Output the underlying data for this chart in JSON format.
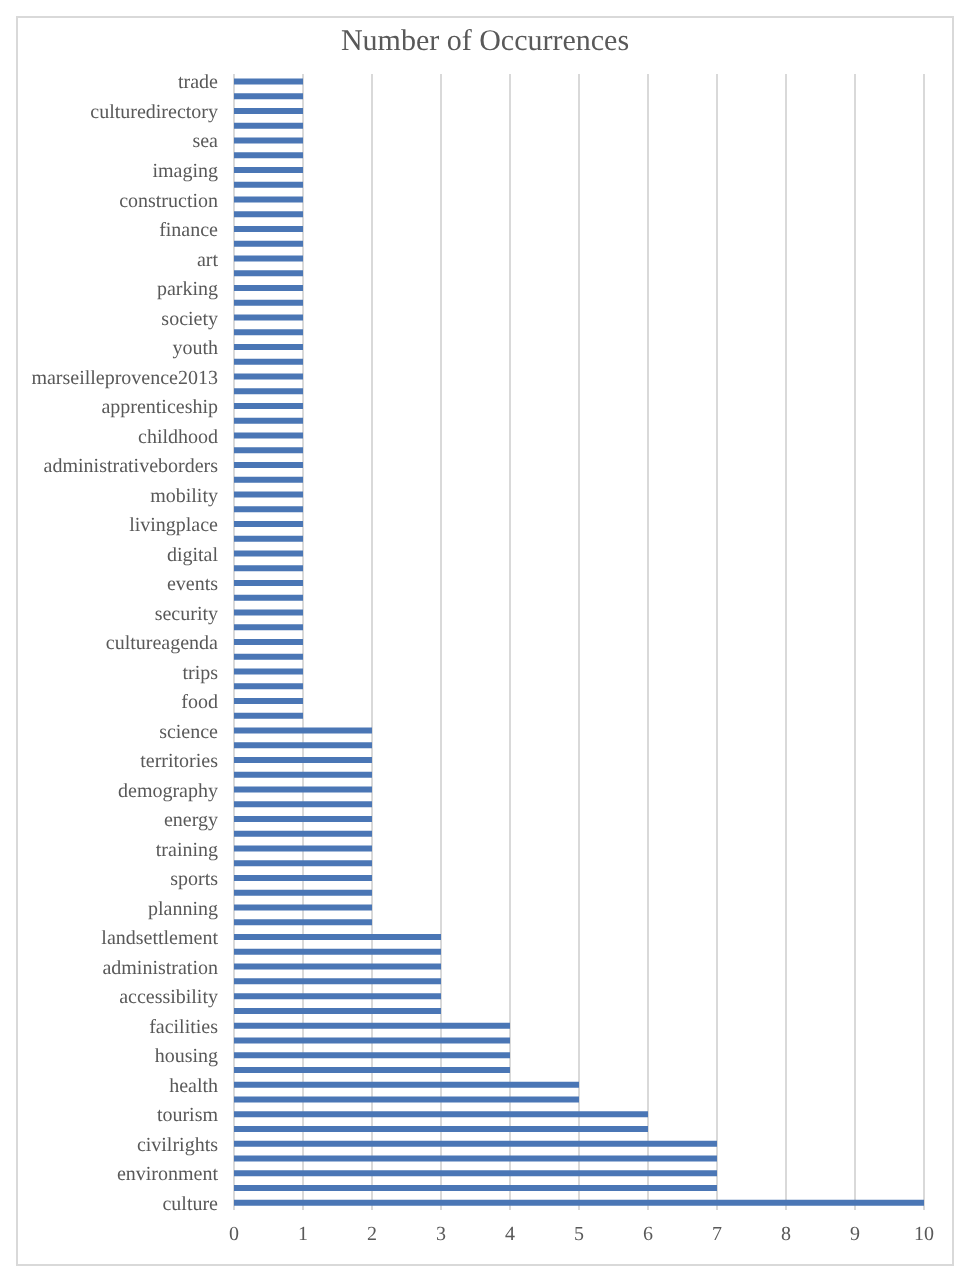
{
  "chart_data": {
    "type": "bar",
    "orientation": "horizontal",
    "title": "Number of Occurrences",
    "categories": [
      "trade",
      null,
      "culturedirectory",
      null,
      "sea",
      null,
      "imaging",
      null,
      "construction",
      null,
      "finance",
      null,
      "art",
      null,
      "parking",
      null,
      "society",
      null,
      "youth",
      null,
      "marseilleprovence2013",
      null,
      "apprenticeship",
      null,
      "childhood",
      null,
      "administrativeborders",
      null,
      "mobility",
      null,
      "livingplace",
      null,
      "digital",
      null,
      "events",
      null,
      "security",
      null,
      "cultureagenda",
      null,
      "trips",
      null,
      "food",
      null,
      "science",
      null,
      "territories",
      null,
      "demography",
      null,
      "energy",
      null,
      "training",
      null,
      "sports",
      null,
      "planning",
      null,
      "landsettlement",
      null,
      "administration",
      null,
      "accessibility",
      null,
      "facilities",
      null,
      "housing",
      null,
      "health",
      null,
      "tourism",
      null,
      "civilrights",
      null,
      "environment",
      null,
      "culture"
    ],
    "values": [
      1,
      1,
      1,
      1,
      1,
      1,
      1,
      1,
      1,
      1,
      1,
      1,
      1,
      1,
      1,
      1,
      1,
      1,
      1,
      1,
      1,
      1,
      1,
      1,
      1,
      1,
      1,
      1,
      1,
      1,
      1,
      1,
      1,
      1,
      1,
      1,
      1,
      1,
      1,
      1,
      1,
      1,
      1,
      1,
      2,
      2,
      2,
      2,
      2,
      2,
      2,
      2,
      2,
      2,
      2,
      2,
      2,
      2,
      3,
      3,
      3,
      3,
      3,
      3,
      4,
      4,
      4,
      4,
      5,
      5,
      6,
      6,
      7,
      7,
      7,
      7,
      10
    ],
    "color": "#4a76b5",
    "xlim": [
      0,
      10
    ],
    "xticks": [
      0,
      1,
      2,
      3,
      4,
      5,
      6,
      7,
      8,
      9,
      10
    ],
    "grid": "x"
  }
}
